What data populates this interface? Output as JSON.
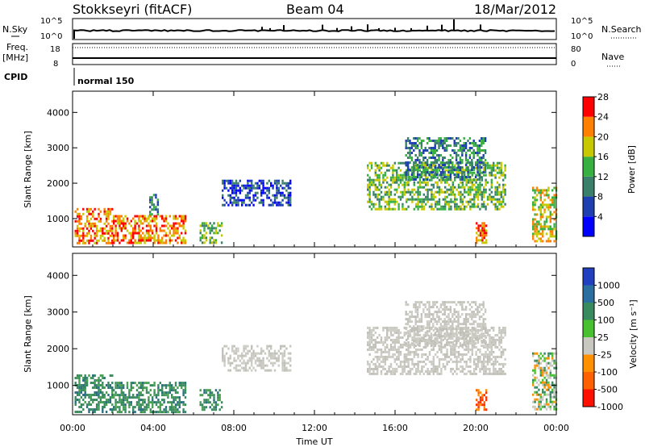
{
  "header": {
    "station": "Stokkseyri (fitACF)",
    "beam": "Beam 04",
    "date": "18/Mar/2012"
  },
  "info_panels": {
    "nsky_label": "N.Sky",
    "nsky_ticks": [
      "10^5",
      "10^0"
    ],
    "nsearch_label": "N.Search",
    "nsearch_ticks": [
      "10^5",
      "10^0"
    ],
    "freq_label_top": "Freq.",
    "freq_label_bottom": "[MHz]",
    "freq_ticks": [
      "18",
      "8"
    ],
    "nave_label": "Nave",
    "nave_ticks": [
      "80",
      "0"
    ],
    "cpid_label": "CPID",
    "cpid_value": "normal 150"
  },
  "colors": {
    "velocity_gray": "#c8c8c0",
    "frame": "#000000"
  },
  "chart_data": [
    {
      "type": "heatmap",
      "name": "power",
      "ylabel": "Slant Range [km]",
      "xlabel": "",
      "ylim": [
        200,
        4600
      ],
      "xlim_hours": [
        0,
        24
      ],
      "y_ticks": [
        "1000",
        "2000",
        "3000",
        "4000"
      ],
      "colorbar": {
        "label": "Power [dB]",
        "ticks": [
          "4",
          "8",
          "12",
          "16",
          "20",
          "24",
          "28"
        ],
        "colors": [
          "#0000ff",
          "#1e3fb0",
          "#3a7f6a",
          "#38b040",
          "#c8c800",
          "#ff8000",
          "#ff0000"
        ]
      },
      "echo_regions": [
        {
          "t0": 0.1,
          "t1": 2.0,
          "r0": 300,
          "r1": 1300,
          "level": 5
        },
        {
          "t0": 2.0,
          "t1": 5.6,
          "r0": 300,
          "r1": 1100,
          "level": 5
        },
        {
          "t0": 3.8,
          "t1": 4.2,
          "r0": 1100,
          "r1": 1700,
          "level": 2
        },
        {
          "t0": 6.3,
          "t1": 7.4,
          "r0": 350,
          "r1": 900,
          "level": 3
        },
        {
          "t0": 7.4,
          "t1": 10.8,
          "r0": 1400,
          "r1": 2100,
          "level": 1
        },
        {
          "t0": 14.6,
          "t1": 21.5,
          "r0": 1300,
          "r1": 2600,
          "level": 3
        },
        {
          "t0": 16.5,
          "t1": 20.5,
          "r0": 2100,
          "r1": 3300,
          "level": 2
        },
        {
          "t0": 20.0,
          "t1": 20.5,
          "r0": 350,
          "r1": 900,
          "level": 5
        },
        {
          "t0": 22.8,
          "t1": 24.0,
          "r0": 350,
          "r1": 1900,
          "level": 4
        }
      ]
    },
    {
      "type": "heatmap",
      "name": "velocity",
      "ylabel": "Slant Range [km]",
      "xlabel": "Time UT",
      "ylim": [
        200,
        4600
      ],
      "xlim_hours": [
        0,
        24
      ],
      "x_ticks": [
        "00:00",
        "04:00",
        "08:00",
        "12:00",
        "16:00",
        "20:00",
        "00:00"
      ],
      "y_ticks": [
        "1000",
        "2000",
        "3000",
        "4000"
      ],
      "colorbar": {
        "label": "Velocity [m s⁻¹]",
        "ticks": [
          "1000",
          "500",
          "100",
          "25",
          "-25",
          "-100",
          "-500",
          "-1000"
        ],
        "colors": [
          "#2040c0",
          "#2a6fa0",
          "#3a8a60",
          "#48c030",
          "#c8c8c0",
          "#ff9000",
          "#ff6000",
          "#ff1000"
        ]
      },
      "echo_regions": [
        {
          "t0": 0.1,
          "t1": 2.0,
          "r0": 300,
          "r1": 1300,
          "class": "toward"
        },
        {
          "t0": 2.0,
          "t1": 5.6,
          "r0": 300,
          "r1": 1100,
          "class": "toward"
        },
        {
          "t0": 6.3,
          "t1": 7.4,
          "r0": 350,
          "r1": 900,
          "class": "toward"
        },
        {
          "t0": 7.4,
          "t1": 10.8,
          "r0": 1400,
          "r1": 2100,
          "class": "near-zero"
        },
        {
          "t0": 14.6,
          "t1": 21.5,
          "r0": 1300,
          "r1": 2600,
          "class": "near-zero"
        },
        {
          "t0": 16.5,
          "t1": 20.5,
          "r0": 2100,
          "r1": 3300,
          "class": "near-zero"
        },
        {
          "t0": 20.0,
          "t1": 20.5,
          "r0": 350,
          "r1": 900,
          "class": "away"
        },
        {
          "t0": 22.8,
          "t1": 24.0,
          "r0": 350,
          "r1": 1900,
          "class": "mixed"
        }
      ]
    }
  ]
}
